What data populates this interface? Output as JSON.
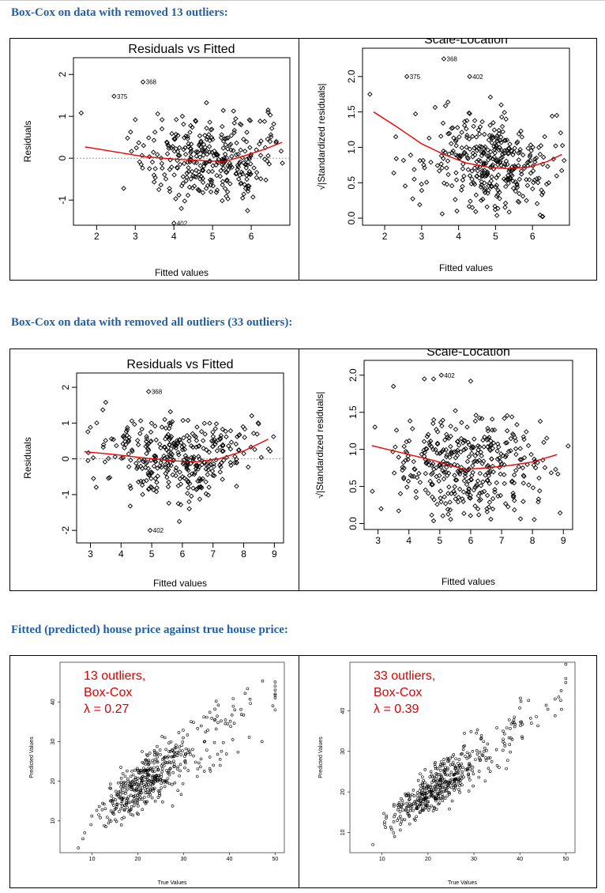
{
  "headings": {
    "h1": "Box-Cox on data with removed 13 outliers:",
    "h2": "Box-Cox on data with removed all outliers (33 outliers):",
    "h3": "Fitted (predicted) house price against true house price:"
  },
  "colors": {
    "heading": "#1f5fa8",
    "smooth": "#ee0000",
    "annotation": "#dd0000",
    "points": "#000000"
  },
  "chart_data": [
    {
      "id": "rvf13",
      "type": "scatter",
      "title": "Residuals vs Fitted",
      "xlabel": "Fitted values",
      "ylabel": "Residuals",
      "xlim": [
        1.4,
        7.0
      ],
      "ylim": [
        -1.6,
        2.4
      ],
      "xticks": [
        2,
        3,
        4,
        5,
        6
      ],
      "yticks": [
        -1,
        0,
        1,
        2
      ],
      "reference_line": 0,
      "smooth": [
        [
          1.7,
          0.27
        ],
        [
          2.5,
          0.15
        ],
        [
          3.2,
          0.04
        ],
        [
          4.0,
          -0.02
        ],
        [
          4.8,
          -0.06
        ],
        [
          5.3,
          -0.08
        ],
        [
          5.8,
          0.05
        ],
        [
          6.3,
          0.2
        ],
        [
          6.8,
          0.38
        ]
      ],
      "labeled_points": [
        {
          "label": "368",
          "x": 3.2,
          "y": 1.82
        },
        {
          "label": "375",
          "x": 2.45,
          "y": 1.48
        },
        {
          "label": "402",
          "x": 4.0,
          "y": -1.55
        }
      ],
      "extra_points": [
        [
          1.6,
          1.08
        ],
        [
          3.0,
          0.92
        ],
        [
          2.8,
          0.48
        ],
        [
          2.7,
          -0.72
        ]
      ],
      "cloud": {
        "x_center": 4.9,
        "x_spread": 0.85,
        "y_spread": 0.48,
        "count": 330,
        "seed": 13
      }
    },
    {
      "id": "sl13",
      "type": "scatter",
      "title": "Scale-Location",
      "xlabel": "Fitted values",
      "ylabel": "√|Standardized residuals|",
      "xlim": [
        1.4,
        7.0
      ],
      "ylim": [
        -0.1,
        2.4
      ],
      "xticks": [
        2,
        3,
        4,
        5,
        6
      ],
      "yticks": [
        0.0,
        0.5,
        1.0,
        1.5,
        2.0
      ],
      "smooth": [
        [
          1.7,
          1.5
        ],
        [
          2.3,
          1.3
        ],
        [
          3.0,
          1.05
        ],
        [
          3.6,
          0.9
        ],
        [
          4.2,
          0.78
        ],
        [
          4.8,
          0.72
        ],
        [
          5.3,
          0.7
        ],
        [
          5.9,
          0.72
        ],
        [
          6.4,
          0.8
        ],
        [
          6.8,
          0.9
        ]
      ],
      "labeled_points": [
        {
          "label": "368",
          "x": 3.6,
          "y": 2.25
        },
        {
          "label": "375",
          "x": 2.6,
          "y": 2.0
        },
        {
          "label": "402",
          "x": 4.3,
          "y": 2.0
        }
      ],
      "extra_points": [
        [
          1.6,
          1.75
        ],
        [
          2.3,
          1.15
        ],
        [
          2.8,
          0.55
        ]
      ],
      "cloud": {
        "x_center": 4.9,
        "x_spread": 0.9,
        "y_center": 0.78,
        "y_spread": 0.38,
        "count": 360,
        "seed": 27
      }
    },
    {
      "id": "rvf33",
      "type": "scatter",
      "title": "Residuals vs Fitted",
      "xlabel": "Fitted values",
      "ylabel": "Residuals",
      "xlim": [
        2.55,
        9.3
      ],
      "ylim": [
        -2.35,
        2.4
      ],
      "xticks": [
        3,
        4,
        5,
        6,
        7,
        8,
        9
      ],
      "yticks": [
        -2,
        -1,
        0,
        1,
        2
      ],
      "reference_line": 0,
      "smooth": [
        [
          2.8,
          0.2
        ],
        [
          3.8,
          0.12
        ],
        [
          4.8,
          0.02
        ],
        [
          5.8,
          -0.06
        ],
        [
          6.5,
          -0.08
        ],
        [
          7.2,
          0.0
        ],
        [
          8.0,
          0.22
        ],
        [
          8.8,
          0.55
        ]
      ],
      "labeled_points": [
        {
          "label": "368",
          "x": 4.9,
          "y": 1.88
        },
        {
          "label": "402",
          "x": 4.95,
          "y": -2.0
        }
      ],
      "extra_points": [
        [
          3.5,
          1.58
        ],
        [
          3.0,
          0.88
        ],
        [
          5.9,
          -1.75
        ],
        [
          4.3,
          -1.32
        ],
        [
          3.1,
          -0.55
        ]
      ],
      "cloud": {
        "x_center": 5.9,
        "x_spread": 1.25,
        "y_spread": 0.52,
        "count": 360,
        "seed": 41
      }
    },
    {
      "id": "sl33",
      "type": "scatter",
      "title": "Scale-Location",
      "xlabel": "Fitted values",
      "ylabel": "√|Standardized residuals|",
      "xlim": [
        2.55,
        9.3
      ],
      "ylim": [
        -0.08,
        2.2
      ],
      "xticks": [
        3,
        4,
        5,
        6,
        7,
        8,
        9
      ],
      "yticks": [
        0.0,
        0.5,
        1.0,
        1.5,
        2.0
      ],
      "smooth": [
        [
          2.8,
          1.05
        ],
        [
          3.8,
          0.95
        ],
        [
          4.8,
          0.85
        ],
        [
          5.8,
          0.73
        ],
        [
          6.5,
          0.75
        ],
        [
          7.2,
          0.78
        ],
        [
          8.0,
          0.83
        ],
        [
          8.8,
          0.93
        ]
      ],
      "labeled_points": [
        {
          "label": "402",
          "x": 5.05,
          "y": 2.0
        }
      ],
      "extra_points": [
        [
          4.5,
          1.95
        ],
        [
          4.8,
          1.95
        ],
        [
          6.0,
          1.92
        ],
        [
          3.5,
          1.85
        ],
        [
          2.9,
          1.3
        ],
        [
          3.1,
          0.2
        ]
      ],
      "cloud": {
        "x_center": 5.9,
        "x_spread": 1.25,
        "y_center": 0.78,
        "y_spread": 0.36,
        "count": 380,
        "seed": 57
      }
    },
    {
      "id": "pvt13",
      "type": "scatter",
      "title": "",
      "xlabel": "True Values",
      "ylabel": "Predicted Values",
      "xlim": [
        3,
        52
      ],
      "ylim": [
        2,
        50
      ],
      "xticks": [
        10,
        20,
        30,
        40,
        50
      ],
      "yticks": [
        10,
        20,
        30,
        40
      ],
      "annotation": [
        "13 outliers,",
        "Box-Cox",
        "λ = 0.27"
      ],
      "extra_points": [
        [
          50,
          45
        ],
        [
          50,
          44
        ],
        [
          50,
          43
        ],
        [
          50,
          42
        ],
        [
          50,
          41
        ],
        [
          49.5,
          39
        ],
        [
          50,
          38
        ],
        [
          7,
          3.2
        ],
        [
          8,
          5.5
        ]
      ],
      "cloud": {
        "x_min": 5,
        "x_max": 50,
        "x_mode": 21,
        "slope": 0.82,
        "intercept": 2.2,
        "noise": 2.8,
        "count": 480,
        "seed": 71
      }
    },
    {
      "id": "pvt33",
      "type": "scatter",
      "title": "",
      "xlabel": "True Values",
      "ylabel": "Predicted Values",
      "xlim": [
        3,
        52
      ],
      "ylim": [
        5,
        52
      ],
      "xticks": [
        10,
        20,
        30,
        40,
        50
      ],
      "yticks": [
        10,
        20,
        30,
        40
      ],
      "annotation": [
        "33 outliers,",
        "Box-Cox",
        "λ = 0.39"
      ],
      "extra_points": [
        [
          50,
          48
        ],
        [
          50,
          47
        ],
        [
          49,
          45
        ],
        [
          8,
          7
        ]
      ],
      "cloud": {
        "x_min": 6,
        "x_max": 50,
        "x_mode": 21,
        "slope": 0.85,
        "intercept": 2.5,
        "noise": 2.4,
        "count": 470,
        "seed": 89
      }
    }
  ]
}
